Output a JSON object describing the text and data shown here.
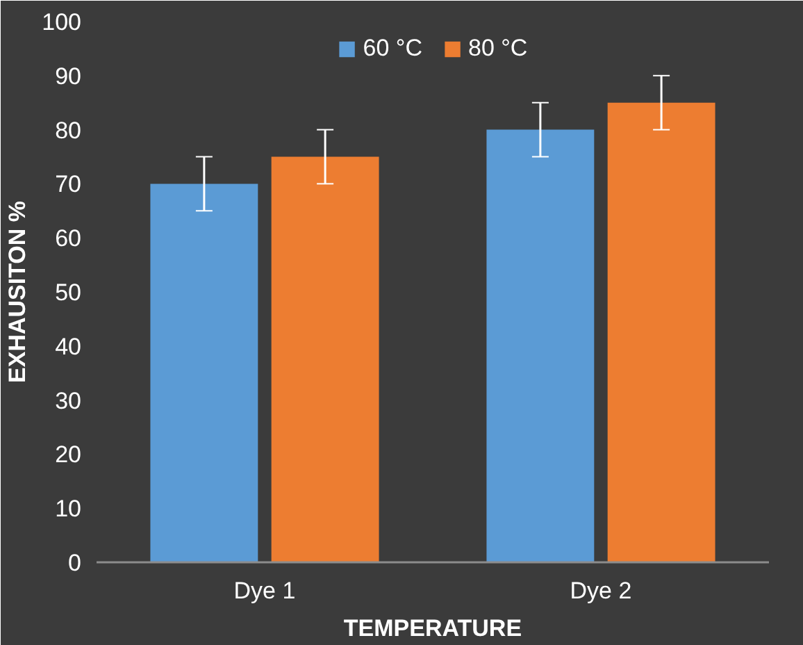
{
  "chart_data": {
    "type": "bar",
    "xlabel": "TEMPERATURE",
    "ylabel": "EXHAUSITON %",
    "categories": [
      "Dye 1",
      "Dye 2"
    ],
    "series": [
      {
        "name": "60 °C",
        "color": "#5b9bd5",
        "values": [
          70,
          80
        ],
        "errors": [
          5,
          5
        ]
      },
      {
        "name": "80 °C",
        "color": "#ed7d31",
        "values": [
          75,
          85
        ],
        "errors": [
          5,
          5
        ]
      }
    ],
    "ylim": [
      0,
      100
    ],
    "yticks": [
      0,
      10,
      20,
      30,
      40,
      50,
      60,
      70,
      80,
      90,
      100
    ],
    "grid": false,
    "legend": "top"
  }
}
